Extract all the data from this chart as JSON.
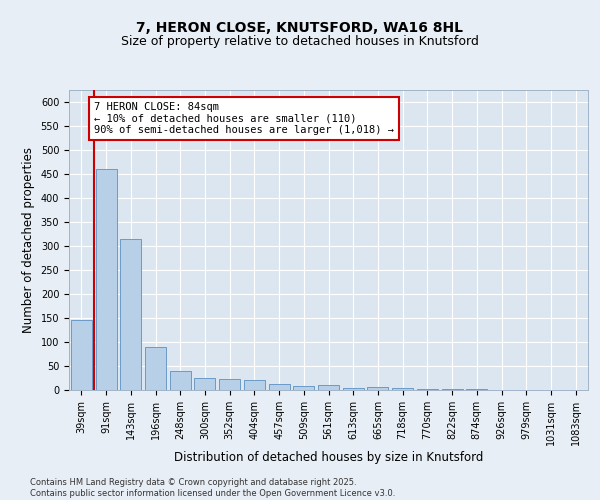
{
  "title1": "7, HERON CLOSE, KNUTSFORD, WA16 8HL",
  "title2": "Size of property relative to detached houses in Knutsford",
  "xlabel": "Distribution of detached houses by size in Knutsford",
  "ylabel": "Number of detached properties",
  "categories": [
    "39sqm",
    "91sqm",
    "143sqm",
    "196sqm",
    "248sqm",
    "300sqm",
    "352sqm",
    "404sqm",
    "457sqm",
    "509sqm",
    "561sqm",
    "613sqm",
    "665sqm",
    "718sqm",
    "770sqm",
    "822sqm",
    "874sqm",
    "926sqm",
    "979sqm",
    "1031sqm",
    "1083sqm"
  ],
  "values": [
    145,
    460,
    315,
    90,
    40,
    25,
    22,
    20,
    12,
    8,
    10,
    5,
    6,
    5,
    3,
    2,
    2,
    1,
    1,
    1,
    1
  ],
  "bar_color": "#b8cfe8",
  "bar_edge_color": "#5a90c0",
  "red_line_x": 0.575,
  "annotation_text": "7 HERON CLOSE: 84sqm\n← 10% of detached houses are smaller (110)\n90% of semi-detached houses are larger (1,018) →",
  "annotation_box_color": "#ffffff",
  "annotation_box_edge": "#cc0000",
  "ylim": [
    0,
    625
  ],
  "yticks": [
    0,
    50,
    100,
    150,
    200,
    250,
    300,
    350,
    400,
    450,
    500,
    550,
    600
  ],
  "background_color": "#e8eef5",
  "plot_bg_color": "#dce6f0",
  "grid_color": "#ffffff",
  "footer": "Contains HM Land Registry data © Crown copyright and database right 2025.\nContains public sector information licensed under the Open Government Licence v3.0.",
  "title_fontsize": 10,
  "subtitle_fontsize": 9,
  "tick_fontsize": 7,
  "label_fontsize": 8.5,
  "ann_fontsize": 7.5
}
